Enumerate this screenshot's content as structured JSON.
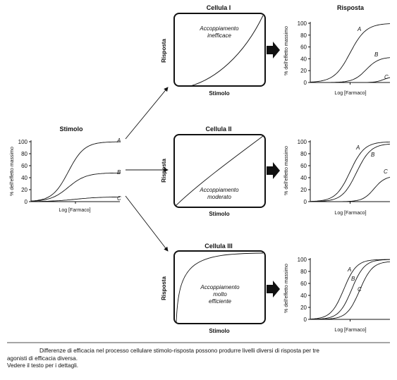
{
  "stimulus_panel": {
    "title": "Stimolo",
    "ylabel": "% dell'effetto massimo",
    "xlabel": "Log [Farmaco]",
    "yticks": [
      "0",
      "20",
      "40",
      "60",
      "80",
      "100"
    ],
    "curves": [
      "A",
      "B",
      "C"
    ]
  },
  "cells": [
    {
      "title": "Cellula I",
      "ylabel": "Risposta",
      "xlabel": "Stimolo",
      "text": [
        "Accoppiamento",
        "inefficace"
      ]
    },
    {
      "title": "Cellula II",
      "ylabel": "Risposta",
      "xlabel": "Stimolo",
      "text": [
        "Accoppiamento",
        "moderato"
      ]
    },
    {
      "title": "Cellula III",
      "ylabel": "Risposta",
      "xlabel": "Stimolo",
      "text": [
        "Accoppiamento",
        "molto",
        "efficiente"
      ]
    }
  ],
  "response_panels": {
    "title": "Risposta",
    "ylabel": "% dell'effetto massimo",
    "xlabel": "Log [Farmaco]",
    "yticks": [
      "0",
      "20",
      "40",
      "60",
      "80",
      "100"
    ],
    "curves": [
      "A",
      "B",
      "C"
    ]
  },
  "caption": {
    "line1": "Differenze di efficacia nel processo cellulare stimolo-risposta possono produrre livelli diversi di risposta per tre",
    "line2": "agonisti di efficacia diversa.",
    "line3": "Vedere il testo per i dettagli."
  },
  "chart_data": [
    {
      "type": "line",
      "title": "Stimolo",
      "xlabel": "Log [Farmaco]",
      "ylabel": "% dell'effetto massimo",
      "ylim": [
        0,
        100
      ],
      "series": [
        {
          "name": "A",
          "max": 100
        },
        {
          "name": "B",
          "max": 48
        },
        {
          "name": "C",
          "max": 8
        }
      ]
    },
    {
      "type": "line",
      "title": "Risposta",
      "xlabel": "Log [Farmaco]",
      "ylabel": "% dell'effetto massimo",
      "ylim": [
        0,
        100
      ],
      "series": [
        {
          "name": "A",
          "max": 100
        },
        {
          "name": "B",
          "max": 43
        },
        {
          "name": "C",
          "max": 10
        }
      ]
    },
    {
      "type": "line",
      "xlabel": "Log [Farmaco]",
      "ylabel": "% dell'effetto massimo",
      "ylim": [
        0,
        100
      ],
      "series": [
        {
          "name": "A",
          "max": 100
        },
        {
          "name": "B",
          "max": 97
        },
        {
          "name": "C",
          "max": 43
        }
      ]
    },
    {
      "type": "line",
      "xlabel": "Log [Farmaco]",
      "ylabel": "% dell'effetto massimo",
      "ylim": [
        0,
        100
      ],
      "series": [
        {
          "name": "A",
          "max": 100
        },
        {
          "name": "B",
          "max": 100
        },
        {
          "name": "C",
          "max": 97
        }
      ]
    }
  ]
}
